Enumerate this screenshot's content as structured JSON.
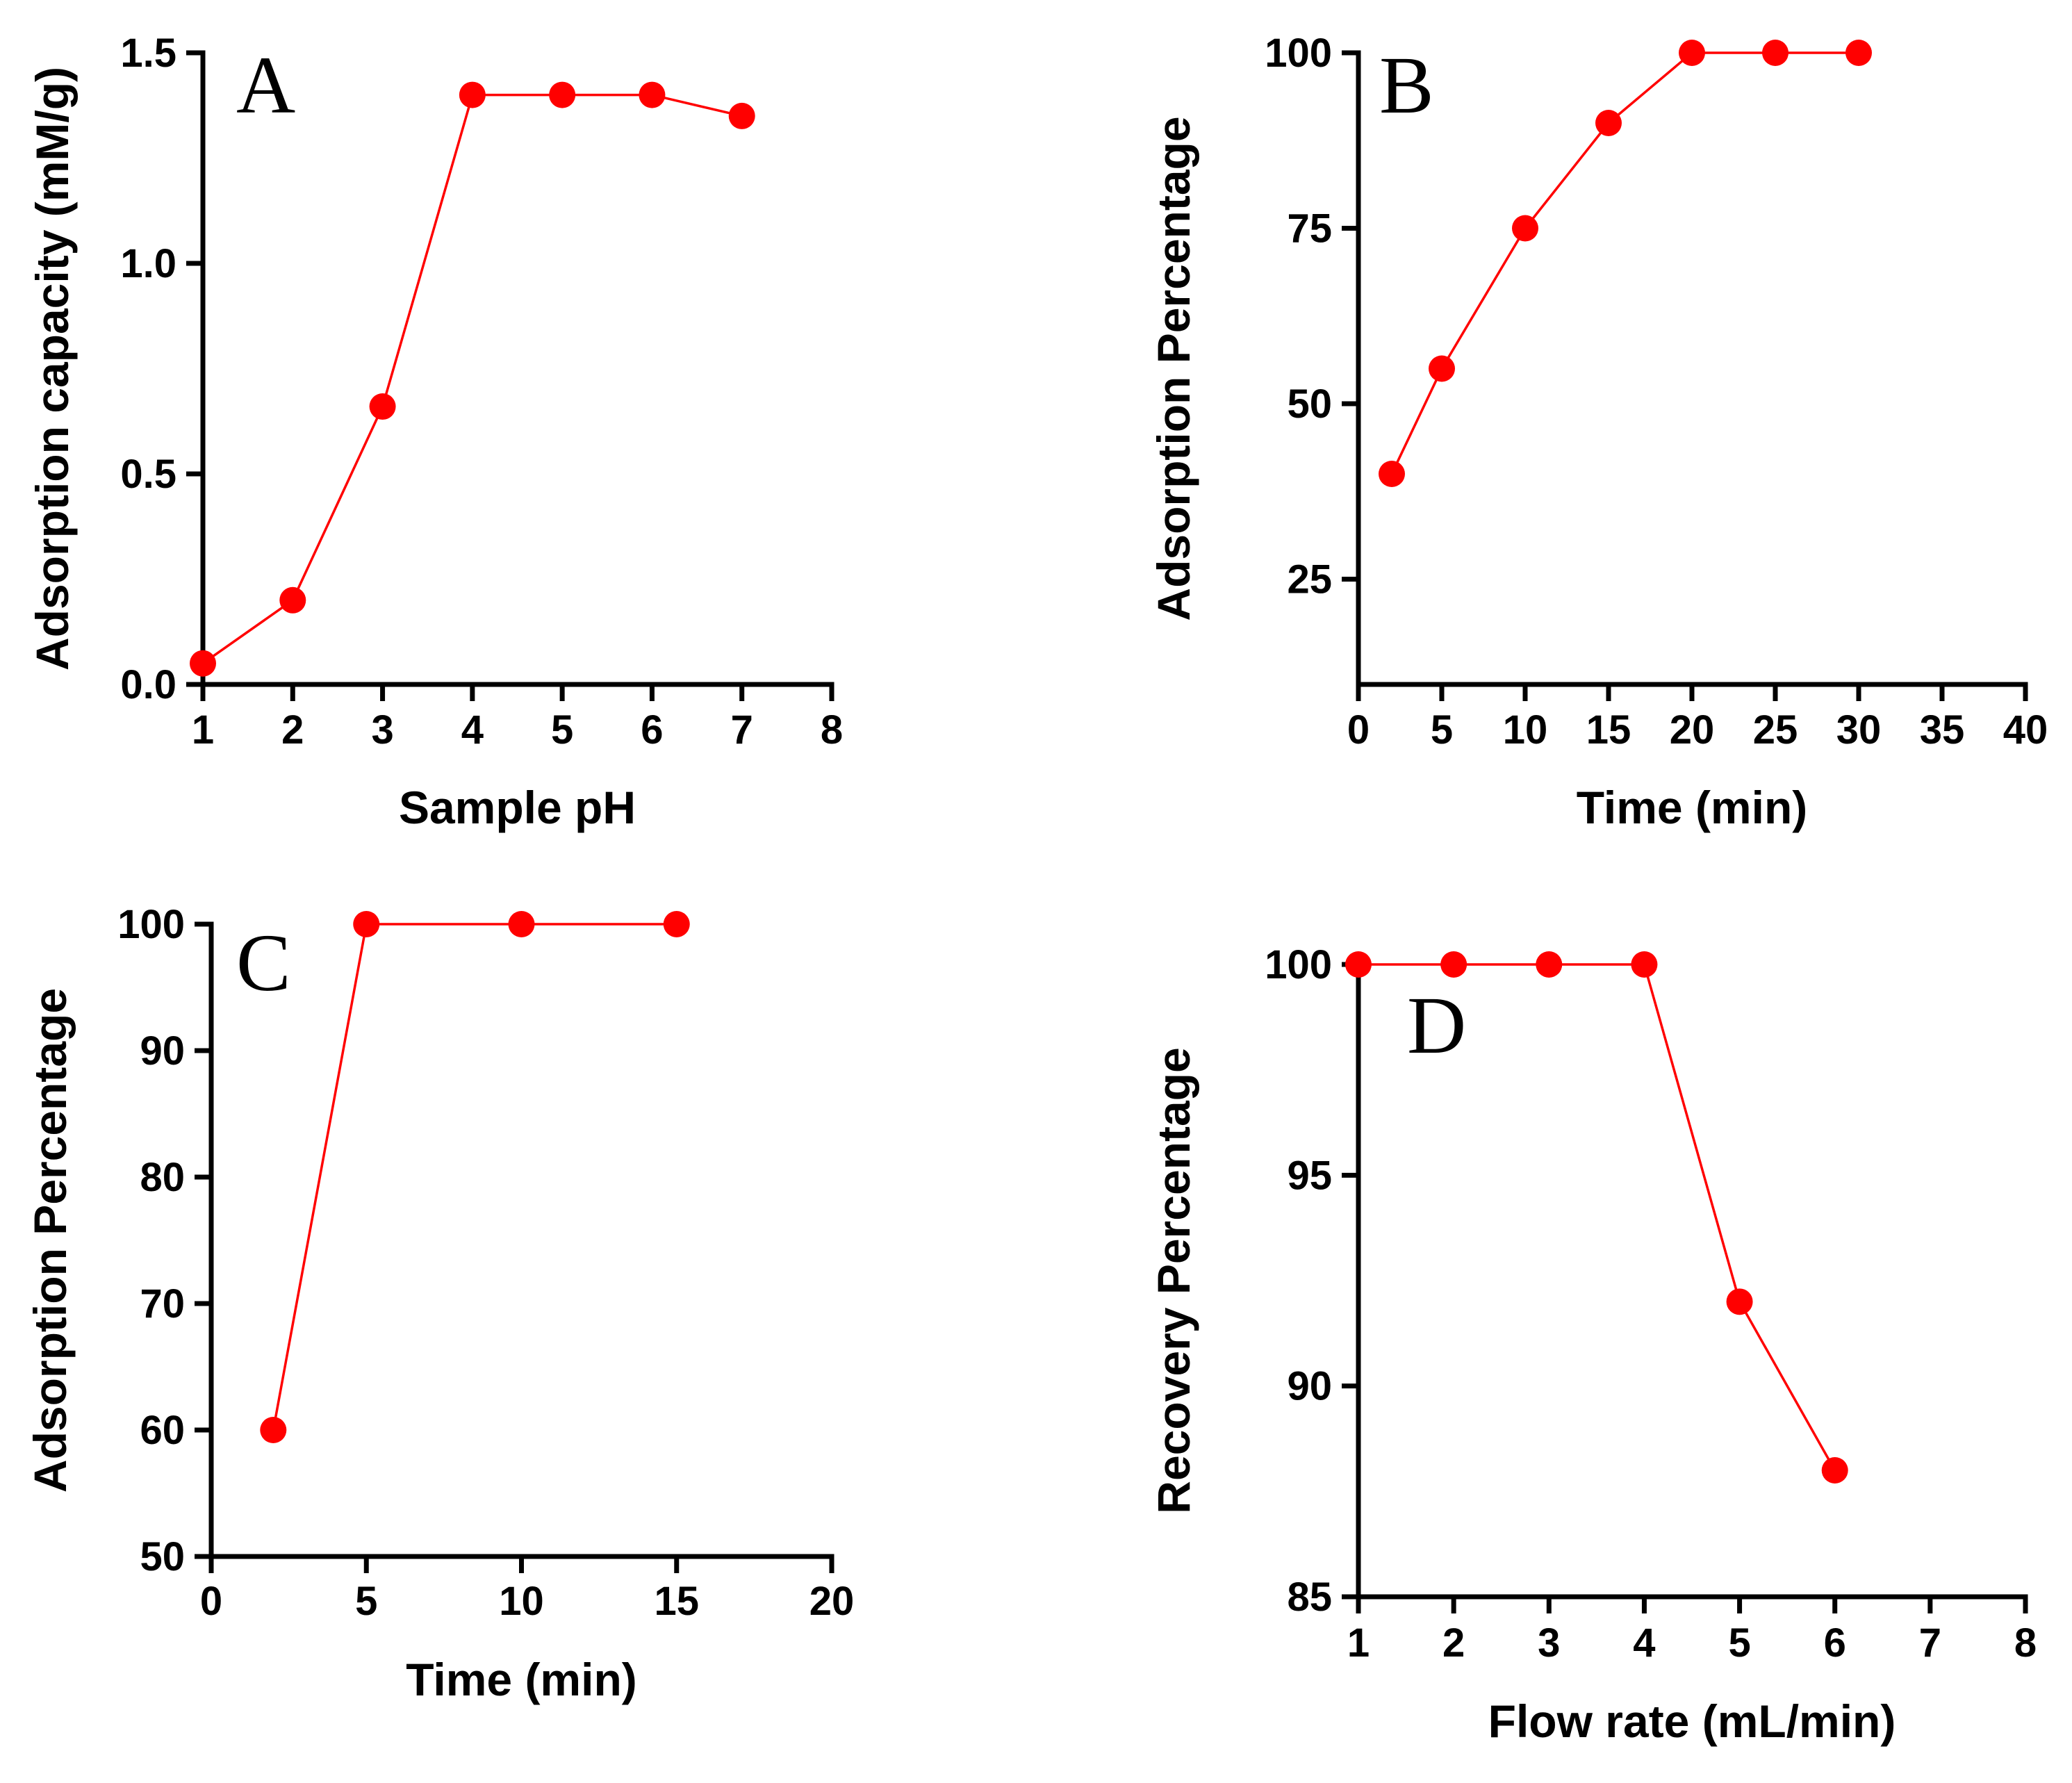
{
  "chart_data": [
    {
      "type": "line",
      "panel": "A",
      "xlabel": "Sample pH",
      "ylabel": "Adsorption capacity (mM/g)",
      "xlim": [
        1,
        8
      ],
      "ylim": [
        0,
        1.5
      ],
      "xticks": [
        "1",
        "2",
        "3",
        "4",
        "5",
        "6",
        "7",
        "8"
      ],
      "yticks": [
        "0.0",
        "0.5",
        "1.0",
        "1.5"
      ],
      "series": [
        {
          "name": "A",
          "x": [
            1,
            2,
            3,
            4,
            5,
            6,
            7
          ],
          "values": [
            0.05,
            0.2,
            0.66,
            1.4,
            1.4,
            1.4,
            1.35
          ]
        }
      ]
    },
    {
      "type": "line",
      "panel": "B",
      "xlabel": "Time (min)",
      "ylabel": "Adsorption Percentage",
      "xlim": [
        0,
        40
      ],
      "ylim": [
        10,
        100
      ],
      "xticks": [
        "0",
        "5",
        "10",
        "15",
        "20",
        "25",
        "30",
        "35",
        "40"
      ],
      "yticks": [
        "25",
        "50",
        "75",
        "100"
      ],
      "series": [
        {
          "name": "B",
          "x": [
            2,
            5,
            10,
            15,
            20,
            25,
            30
          ],
          "values": [
            40,
            55,
            75,
            90,
            100,
            100,
            100
          ]
        }
      ]
    },
    {
      "type": "line",
      "panel": "C",
      "xlabel": "Time (min)",
      "ylabel": "Adsorption Percentage",
      "xlim": [
        0,
        20
      ],
      "ylim": [
        50,
        100
      ],
      "xticks": [
        "0",
        "5",
        "10",
        "15",
        "20"
      ],
      "yticks": [
        "50",
        "60",
        "70",
        "80",
        "90",
        "100"
      ],
      "series": [
        {
          "name": "C",
          "x": [
            2,
            5,
            10,
            15
          ],
          "values": [
            60,
            100,
            100,
            100
          ]
        }
      ]
    },
    {
      "type": "line",
      "panel": "D",
      "xlabel": "Flow rate (mL/min)",
      "ylabel": "Recovery Percentage",
      "xlim": [
        1,
        8
      ],
      "ylim": [
        85,
        100
      ],
      "xticks": [
        "1",
        "2",
        "3",
        "4",
        "5",
        "6",
        "7",
        "8"
      ],
      "yticks": [
        "85",
        "90",
        "95",
        "100"
      ],
      "series": [
        {
          "name": "D",
          "x": [
            1,
            2,
            3,
            4,
            5,
            6
          ],
          "values": [
            100,
            100,
            100,
            100,
            92,
            88
          ]
        }
      ]
    }
  ],
  "colors": {
    "series": "#ff0000",
    "axes": "#000000"
  }
}
